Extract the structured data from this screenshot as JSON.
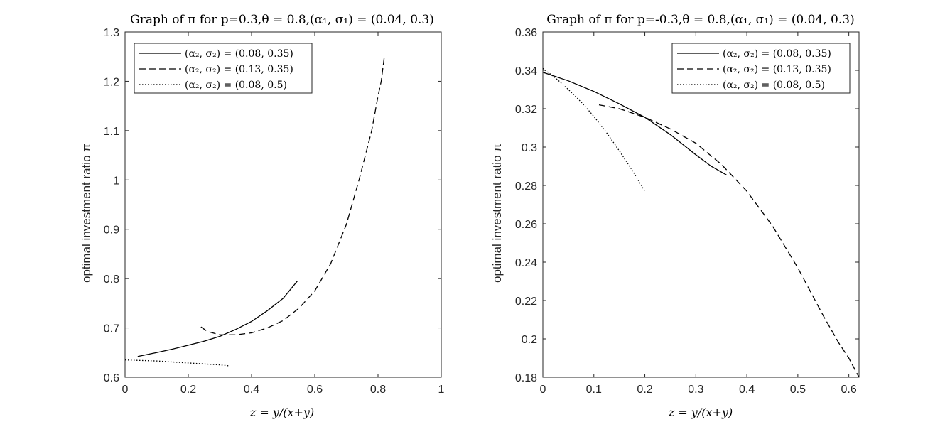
{
  "chart_data": [
    {
      "type": "line",
      "title": "Graph of π for p=0.3,θ = 0.8,(α₁, σ₁) = (0.04, 0.3)",
      "xlabel": "z = y/(x+y)",
      "ylabel": "optimal investment ratio π",
      "xlim": [
        0,
        1
      ],
      "ylim": [
        0.6,
        1.3
      ],
      "xticks": [
        "0",
        "0.2",
        "0.4",
        "0.6",
        "0.8",
        "1"
      ],
      "xtick_values": [
        0,
        0.2,
        0.4,
        0.6,
        0.8,
        1.0
      ],
      "yticks": [
        "0.6",
        "0.7",
        "0.8",
        "0.9",
        "1",
        "1.1",
        "1.2",
        "1.3"
      ],
      "ytick_values": [
        0.6,
        0.7,
        0.8,
        0.9,
        1.0,
        1.1,
        1.2,
        1.3
      ],
      "legend_position": "top-left",
      "series": [
        {
          "name": "(α₂, σ₂) = (0.08, 0.35)",
          "style": "solid",
          "x": [
            0.04,
            0.1,
            0.15,
            0.2,
            0.25,
            0.3,
            0.35,
            0.4,
            0.45,
            0.5,
            0.545
          ],
          "y": [
            0.642,
            0.65,
            0.657,
            0.665,
            0.673,
            0.683,
            0.697,
            0.713,
            0.735,
            0.76,
            0.795
          ]
        },
        {
          "name": "(α₂, σ₂) = (0.13, 0.35)",
          "style": "dashed",
          "x": [
            0.24,
            0.26,
            0.3,
            0.35,
            0.4,
            0.45,
            0.5,
            0.55,
            0.6,
            0.65,
            0.7,
            0.72,
            0.74,
            0.76,
            0.78,
            0.8,
            0.81,
            0.82
          ],
          "y": [
            0.702,
            0.693,
            0.686,
            0.686,
            0.69,
            0.7,
            0.715,
            0.74,
            0.775,
            0.83,
            0.91,
            0.955,
            1.0,
            1.05,
            1.1,
            1.17,
            1.2,
            1.25
          ]
        },
        {
          "name": "(α₂, σ₂) = (0.08, 0.5)",
          "style": "dotted",
          "x": [
            0.0,
            0.05,
            0.1,
            0.15,
            0.2,
            0.25,
            0.3,
            0.33
          ],
          "y": [
            0.635,
            0.634,
            0.633,
            0.631,
            0.629,
            0.627,
            0.625,
            0.623
          ]
        }
      ]
    },
    {
      "type": "line",
      "title": "Graph of π for p=-0.3,θ = 0.8,(α₁, σ₁) = (0.04, 0.3)",
      "xlabel": "z = y/(x+y)",
      "ylabel": "optimal investment ratio π",
      "xlim": [
        0,
        0.62
      ],
      "ylim": [
        0.18,
        0.36
      ],
      "xticks": [
        "0",
        "0.1",
        "0.2",
        "0.3",
        "0.4",
        "0.5",
        "0.6"
      ],
      "xtick_values": [
        0,
        0.1,
        0.2,
        0.3,
        0.4,
        0.5,
        0.6
      ],
      "yticks": [
        "0.18",
        "0.2",
        "0.22",
        "0.24",
        "0.26",
        "0.28",
        "0.3",
        "0.32",
        "0.34",
        "0.36"
      ],
      "ytick_values": [
        0.18,
        0.2,
        0.22,
        0.24,
        0.26,
        0.28,
        0.3,
        0.32,
        0.34,
        0.36
      ],
      "legend_position": "top-right",
      "series": [
        {
          "name": "(α₂, σ₂) = (0.08, 0.35)",
          "style": "solid",
          "x": [
            0.0,
            0.05,
            0.1,
            0.15,
            0.2,
            0.25,
            0.3,
            0.33,
            0.36
          ],
          "y": [
            0.339,
            0.3345,
            0.329,
            0.3225,
            0.3155,
            0.3065,
            0.296,
            0.29,
            0.2855
          ]
        },
        {
          "name": "(α₂, σ₂) = (0.13, 0.35)",
          "style": "dashed",
          "x": [
            0.11,
            0.15,
            0.2,
            0.25,
            0.3,
            0.35,
            0.4,
            0.45,
            0.5,
            0.55,
            0.58,
            0.6,
            0.62
          ],
          "y": [
            0.322,
            0.32,
            0.3155,
            0.3095,
            0.302,
            0.291,
            0.277,
            0.259,
            0.237,
            0.212,
            0.198,
            0.19,
            0.18
          ]
        },
        {
          "name": "(α₂, σ₂) = (0.08, 0.5)",
          "style": "dotted",
          "x": [
            0.0,
            0.025,
            0.05,
            0.075,
            0.1,
            0.125,
            0.15,
            0.175,
            0.2
          ],
          "y": [
            0.341,
            0.336,
            0.33,
            0.3235,
            0.316,
            0.3075,
            0.298,
            0.288,
            0.277
          ]
        }
      ]
    }
  ]
}
